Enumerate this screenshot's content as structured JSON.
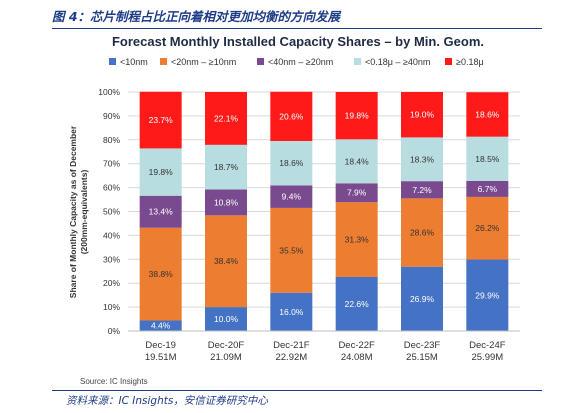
{
  "figure_title": "图 4：芯片制程占比正向着相对更加均衡的方向发展",
  "bottom_source": "资料来源：IC Insights，安信证券研究中心",
  "chart_data": {
    "type": "bar",
    "stacked": true,
    "title": "Forecast Monthly Installed Capacity Shares – by Min. Geom.",
    "ylabel_line1": "Share of Monthly Capacity as of December",
    "ylabel_line2": "(200mm-equivalents)",
    "ylim": [
      0,
      100
    ],
    "yticks": [
      "0%",
      "10%",
      "20%",
      "30%",
      "40%",
      "50%",
      "60%",
      "70%",
      "80%",
      "90%",
      "100%"
    ],
    "grid": true,
    "legend_position": "top",
    "categories": [
      "Dec-19",
      "Dec-20F",
      "Dec-21F",
      "Dec-22F",
      "Dec-23F",
      "Dec-24F"
    ],
    "category_sublabels": [
      "19.51M",
      "21.09M",
      "22.92M",
      "24.08M",
      "25.15M",
      "25.99M"
    ],
    "series": [
      {
        "name": "<10nm",
        "color": "#4472c4",
        "label_color": "#ffffff",
        "values": [
          4.4,
          10.0,
          16.0,
          22.6,
          26.9,
          29.9
        ],
        "labels": [
          "4.4%",
          "10.0%",
          "16.0%",
          "22.6%",
          "26.9%",
          "29.9%"
        ]
      },
      {
        "name": "<20nm – ≥10nm",
        "color": "#ed7d31",
        "label_color": "#333333",
        "values": [
          38.8,
          38.4,
          35.5,
          31.3,
          28.6,
          26.2
        ],
        "labels": [
          "38.8%",
          "38.4%",
          "35.5%",
          "31.3%",
          "28.6%",
          "26.2%"
        ]
      },
      {
        "name": "<40nm – ≥20nm",
        "color": "#7a4a8f",
        "label_color": "#ffffff",
        "values": [
          13.4,
          10.8,
          9.4,
          7.9,
          7.2,
          6.7
        ],
        "labels": [
          "13.4%",
          "10.8%",
          "9.4%",
          "7.9%",
          "7.2%",
          "6.7%"
        ]
      },
      {
        "name": "<0.18μ – ≥40nm",
        "color": "#b8dde0",
        "label_color": "#333333",
        "values": [
          19.8,
          18.7,
          18.6,
          18.4,
          18.3,
          18.5
        ],
        "labels": [
          "19.8%",
          "18.7%",
          "18.6%",
          "18.4%",
          "18.3%",
          "18.5%"
        ]
      },
      {
        "name": "≥0.18μ",
        "color": "#ff1a1a",
        "label_color": "#ffffff",
        "values": [
          23.7,
          22.1,
          20.6,
          19.8,
          19.0,
          18.6
        ],
        "labels": [
          "23.7%",
          "22.1%",
          "20.6%",
          "19.8%",
          "19.0%",
          "18.6%"
        ]
      }
    ],
    "source_note": "Source:  IC Insights"
  }
}
